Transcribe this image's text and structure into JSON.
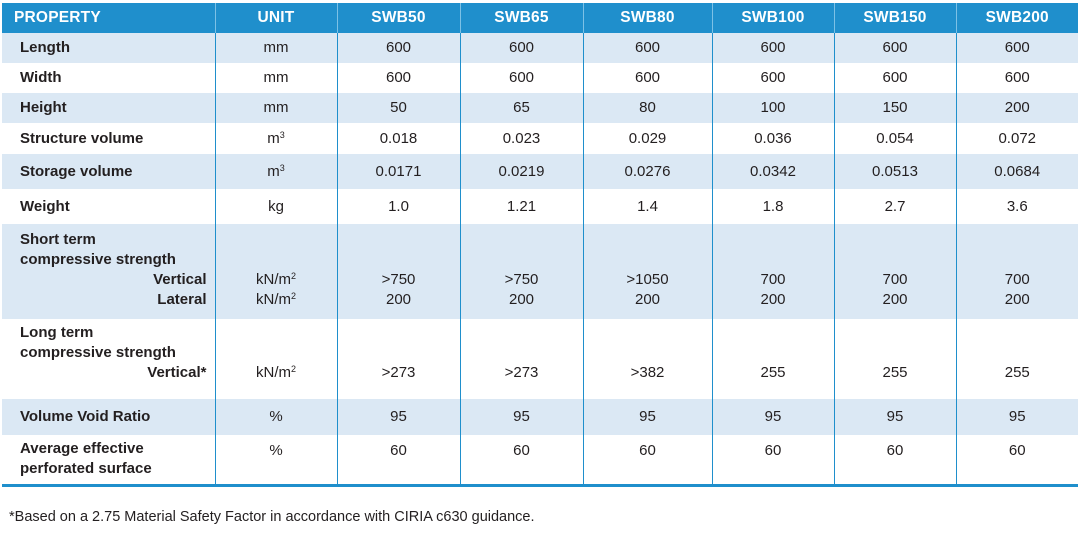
{
  "header": {
    "property": "PROPERTY",
    "unit": "UNIT",
    "models": [
      "SWB50",
      "SWB65",
      "SWB80",
      "SWB100",
      "SWB150",
      "SWB200"
    ]
  },
  "rows": {
    "length": {
      "label": "Length",
      "unit": "mm",
      "values": [
        "600",
        "600",
        "600",
        "600",
        "600",
        "600"
      ]
    },
    "width": {
      "label": "Width",
      "unit": "mm",
      "values": [
        "600",
        "600",
        "600",
        "600",
        "600",
        "600"
      ]
    },
    "height": {
      "label": "Height",
      "unit": "mm",
      "values": [
        "50",
        "65",
        "80",
        "100",
        "150",
        "200"
      ]
    },
    "structure_volume": {
      "label": "Structure volume",
      "unit_base": "m",
      "unit_sup": "3",
      "values": [
        "0.018",
        "0.023",
        "0.029",
        "0.036",
        "0.054",
        "0.072"
      ]
    },
    "storage_volume": {
      "label": "Storage volume",
      "unit_base": "m",
      "unit_sup": "3",
      "values": [
        "0.0171",
        "0.0219",
        "0.0276",
        "0.0342",
        "0.0513",
        "0.0684"
      ]
    },
    "weight": {
      "label": "Weight",
      "unit": "kg",
      "values": [
        "1.0",
        "1.21",
        "1.4",
        "1.8",
        "2.7",
        "3.6"
      ]
    },
    "short_term": {
      "label_line1": "Short term",
      "label_line2": "compressive strength",
      "vertical": {
        "label": "Vertical",
        "unit_base": "kN/m",
        "unit_sup": "2",
        "values": [
          ">750",
          ">750",
          ">1050",
          "700",
          "700",
          "700"
        ]
      },
      "lateral": {
        "label": "Lateral",
        "unit_base": "kN/m",
        "unit_sup": "2",
        "values": [
          "200",
          "200",
          "200",
          "200",
          "200",
          "200"
        ]
      }
    },
    "long_term": {
      "label_line1": "Long term",
      "label_line2": "compressive strength",
      "vertical": {
        "label": "Vertical*",
        "unit_base": "kN/m",
        "unit_sup": "2",
        "values": [
          ">273",
          ">273",
          ">382",
          "255",
          "255",
          "255"
        ]
      }
    },
    "void_ratio": {
      "label": "Volume Void Ratio",
      "unit": "%",
      "values": [
        "95",
        "95",
        "95",
        "95",
        "95",
        "95"
      ]
    },
    "perforated": {
      "label_line1": "Average effective",
      "label_line2": "perforated surface",
      "unit": "%",
      "values": [
        "60",
        "60",
        "60",
        "60",
        "60",
        "60"
      ]
    }
  },
  "footnote": "*Based on a 2.75 Material Safety Factor in accordance with CIRIA c630 guidance.",
  "colors": {
    "header_bg": "#1f8fcc",
    "shade_bg": "#dbe8f4",
    "text": "#231f20"
  }
}
